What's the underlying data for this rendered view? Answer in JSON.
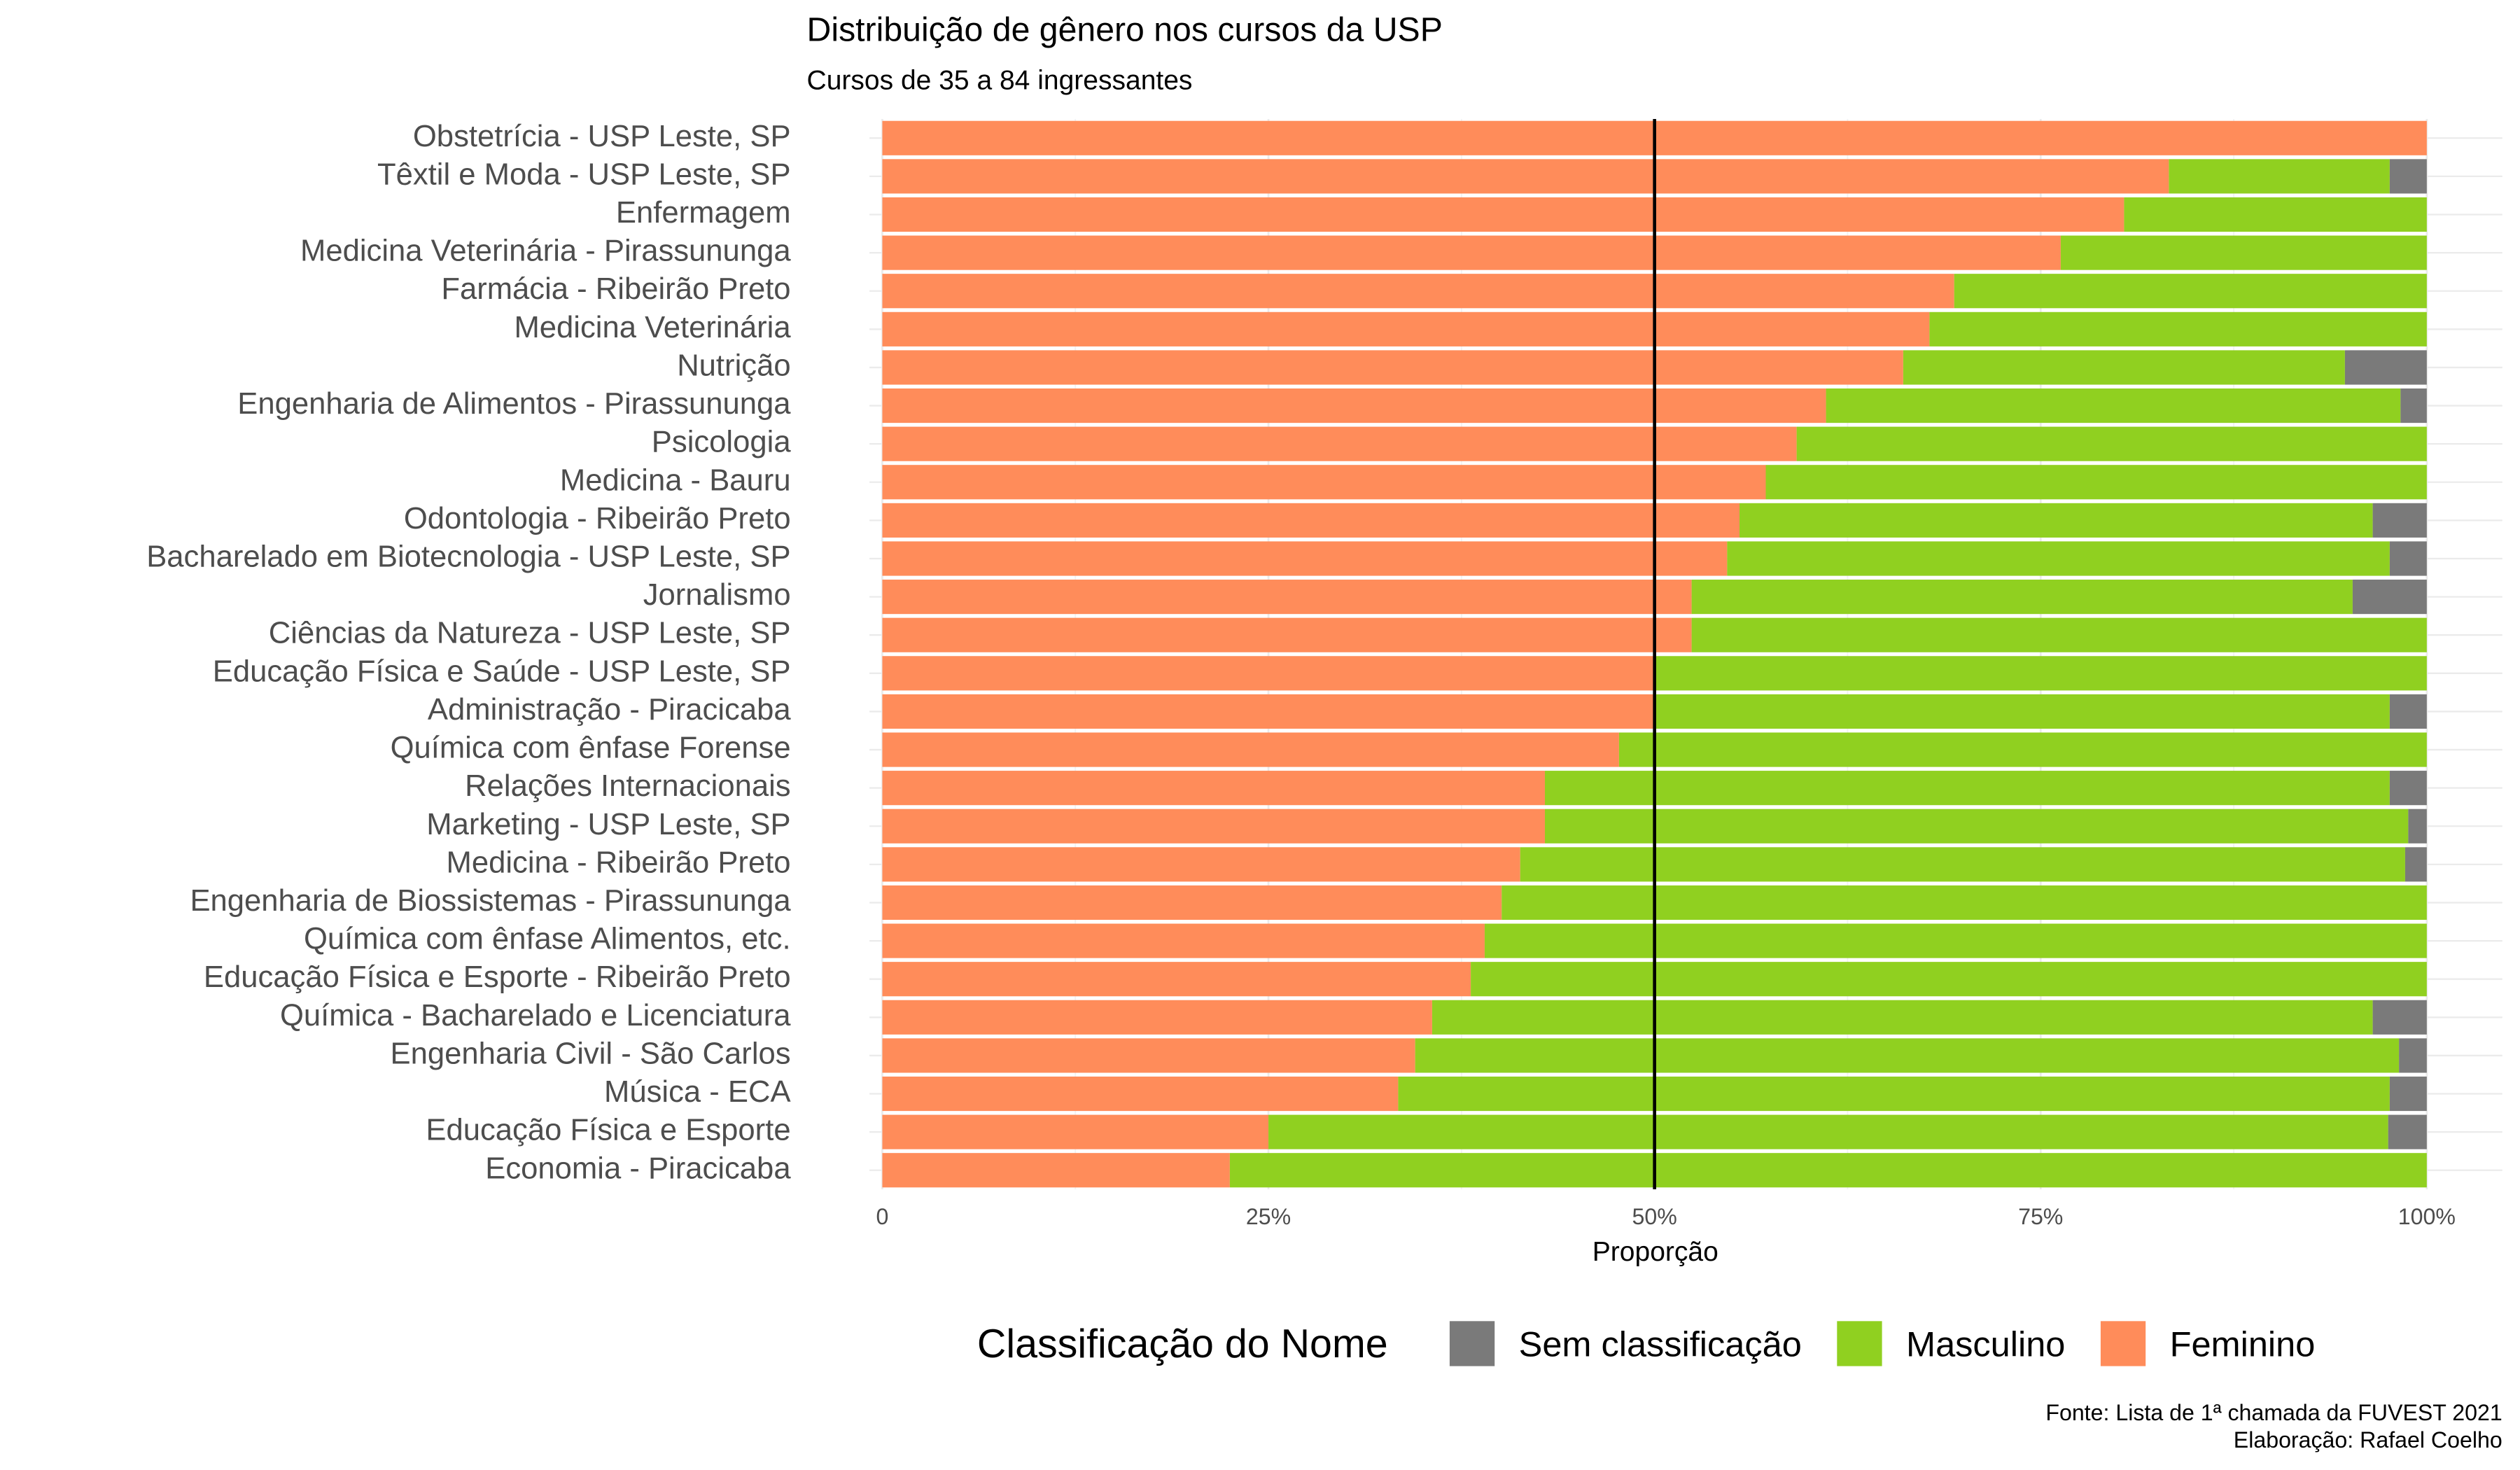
{
  "chart_data": {
    "type": "stacked-bar-horizontal",
    "title": "Distribuição de gênero nos cursos da USP",
    "subtitle": "Cursos de 35 a 84 ingressantes",
    "x_label": "Proporção",
    "legend_title": "Classificação do Nome",
    "caption": [
      "Fonte: Lista de 1ª chamada da FUVEST 2021",
      "Elaboração: Rafael Coelho"
    ],
    "categories": [
      "Obstetrícia - USP Leste, SP",
      "Têxtil e Moda - USP Leste, SP",
      "Enfermagem",
      "Medicina Veterinária - Pirassununga",
      "Farmácia - Ribeirão Preto",
      "Medicina Veterinária",
      "Nutrição",
      "Engenharia de Alimentos - Pirassununga",
      "Psicologia",
      "Medicina - Bauru",
      "Odontologia - Ribeirão Preto",
      "Bacharelado em Biotecnologia - USP Leste, SP",
      "Jornalismo",
      "Ciências da Natureza - USP Leste, SP",
      "Educação Física e Saúde - USP Leste, SP",
      "Administração - Piracicaba",
      "Química com ênfase Forense",
      "Relações Internacionais",
      "Marketing - USP Leste, SP",
      "Medicina - Ribeirão Preto",
      "Engenharia de Biossistemas - Pirassununga",
      "Química com ênfase Alimentos, etc.",
      "Educação Física e Esporte - Ribeirão Preto",
      "Química - Bacharelado e Licenciatura",
      "Engenharia Civil - São Carlos",
      "Música - ECA",
      "Educação Física e Esporte",
      "Economia - Piracicaba"
    ],
    "series": [
      {
        "name": "Feminino",
        "color": "#ff8c5a",
        "values": [
          100,
          83.3,
          80.4,
          76.3,
          69.4,
          67.8,
          66.1,
          61.1,
          59.2,
          57.2,
          55.5,
          54.7,
          52.4,
          52.4,
          50,
          50,
          47.7,
          42.9,
          42.9,
          41.3,
          40.1,
          39.0,
          38.1,
          35.6,
          34.5,
          33.4,
          25.0,
          22.5
        ]
      },
      {
        "name": "Masculino",
        "color": "#90d020",
        "values": [
          0,
          14.3,
          19.6,
          23.7,
          30.6,
          32.2,
          28.6,
          37.2,
          40.8,
          42.8,
          41.0,
          42.9,
          42.8,
          47.6,
          50,
          47.6,
          52.3,
          54.7,
          55.9,
          57.3,
          59.9,
          61.0,
          61.9,
          60.9,
          63.7,
          64.2,
          72.5,
          77.5
        ]
      },
      {
        "name": "Sem classificação",
        "color": "#7a7a7a",
        "values": [
          0,
          2.4,
          0,
          0,
          0,
          0,
          5.3,
          1.7,
          0,
          0,
          3.5,
          2.4,
          4.8,
          0,
          0,
          2.4,
          0,
          2.4,
          1.2,
          1.4,
          0,
          0,
          0,
          3.5,
          1.8,
          2.4,
          2.5,
          0
        ]
      }
    ],
    "xlim": [
      0,
      100
    ],
    "xticks": [
      0,
      {
        "value": 25,
        "label": "25%"
      },
      {
        "value": 50,
        "label": "50%"
      },
      {
        "value": 75,
        "label": "75%"
      },
      {
        "value": 100,
        "label": "100%"
      }
    ],
    "reference_line": 50,
    "grid": true
  }
}
